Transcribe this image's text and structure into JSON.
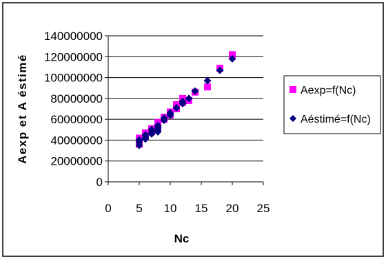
{
  "chart_data": {
    "type": "scatter",
    "title": "",
    "xlabel": "Nc",
    "ylabel": "Aexp et A éstimé",
    "xlim": [
      0,
      25
    ],
    "ylim": [
      0,
      140000000
    ],
    "xticks": [
      0,
      5,
      10,
      15,
      20,
      25
    ],
    "yticks": [
      0,
      20000000,
      40000000,
      60000000,
      80000000,
      100000000,
      120000000,
      140000000
    ],
    "xtick_labels": [
      "0",
      "5",
      "10",
      "15",
      "20",
      "25"
    ],
    "ytick_labels": [
      "0",
      "20000000",
      "40000000",
      "60000000",
      "80000000",
      "100000000",
      "120000000",
      "140000000"
    ],
    "grid": "horizontal",
    "legend_position": "right",
    "series": [
      {
        "name": "Aexp=f(Nc)",
        "marker": "square",
        "color": "#ff00ff",
        "points": [
          [
            5,
            36000000
          ],
          [
            5,
            40000000
          ],
          [
            5,
            42000000
          ],
          [
            6,
            43000000
          ],
          [
            6,
            47000000
          ],
          [
            7,
            48000000
          ],
          [
            7,
            51000000
          ],
          [
            8,
            52000000
          ],
          [
            8,
            55000000
          ],
          [
            8,
            57000000
          ],
          [
            9,
            60000000
          ],
          [
            9,
            62000000
          ],
          [
            10,
            64000000
          ],
          [
            10,
            67000000
          ],
          [
            11,
            70000000
          ],
          [
            11,
            74000000
          ],
          [
            12,
            76000000
          ],
          [
            12,
            80000000
          ],
          [
            13,
            78000000
          ],
          [
            14,
            86000000
          ],
          [
            16,
            91000000
          ],
          [
            18,
            109000000
          ],
          [
            20,
            122000000
          ]
        ]
      },
      {
        "name": "Aéstimé=f(Nc)",
        "marker": "diamond",
        "color": "#000080",
        "points": [
          [
            5,
            35000000
          ],
          [
            5,
            38000000
          ],
          [
            5,
            40000000
          ],
          [
            6,
            41000000
          ],
          [
            6,
            43000000
          ],
          [
            6,
            45000000
          ],
          [
            7,
            46000000
          ],
          [
            7,
            48000000
          ],
          [
            7,
            50000000
          ],
          [
            8,
            48000000
          ],
          [
            8,
            50000000
          ],
          [
            8,
            52000000
          ],
          [
            8,
            54000000
          ],
          [
            9,
            59000000
          ],
          [
            9,
            61000000
          ],
          [
            10,
            64000000
          ],
          [
            10,
            66000000
          ],
          [
            11,
            71000000
          ],
          [
            12,
            75000000
          ],
          [
            12,
            77000000
          ],
          [
            13,
            80000000
          ],
          [
            14,
            87000000
          ],
          [
            16,
            97000000
          ],
          [
            18,
            107000000
          ],
          [
            20,
            118000000
          ]
        ]
      }
    ]
  }
}
